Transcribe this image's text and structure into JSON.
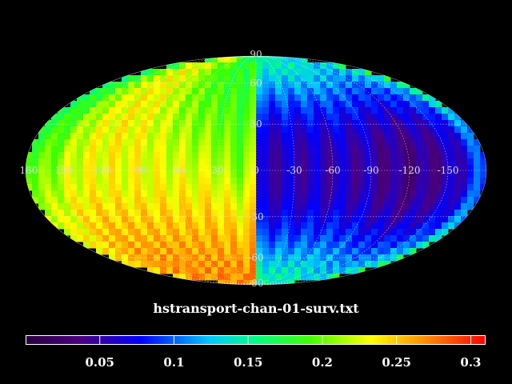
{
  "title": "hstransport-chan-01-surv.txt",
  "projection": "mollweide",
  "grid": true,
  "colormap": "jet",
  "meridian_labels": [
    "180",
    "150",
    "120",
    "90",
    "60",
    "30",
    "0",
    "-30",
    "-60",
    "-90",
    "-120",
    "-150"
  ],
  "parallel_labels": [
    "90",
    "60",
    "30",
    "-30",
    "-60",
    "-90"
  ],
  "colorbar": {
    "min": 0.0,
    "max": 0.31,
    "tick_labels": [
      "0.05",
      "0.1",
      "0.15",
      "0.2",
      "0.25",
      "0.3"
    ],
    "tick_values": [
      0.05,
      0.1,
      0.15,
      0.2,
      0.25,
      0.3
    ]
  }
}
